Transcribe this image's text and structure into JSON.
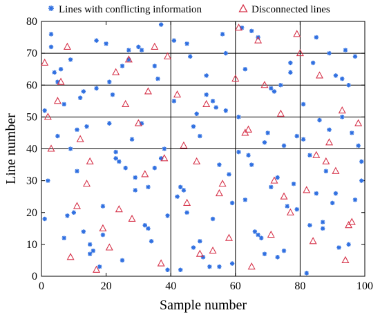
{
  "chart_data": {
    "type": "scatter",
    "title": "",
    "xlabel": "Sample number",
    "ylabel": "Line number",
    "xlim": [
      0,
      100
    ],
    "ylim": [
      0,
      80
    ],
    "xticks": [
      0,
      20,
      40,
      60,
      80,
      100
    ],
    "yticks": [
      0,
      10,
      20,
      30,
      40,
      50,
      60,
      70,
      80
    ],
    "grid": "partial black lines at x=40, 60, 80 and y=40, 50, 60, 70",
    "legend_position": "top",
    "series": [
      {
        "name": "Lines with conflicting information",
        "marker": "asterisk",
        "color": "#2f6fe0",
        "note": "dense scatter across entire plot area; representative points listed",
        "x": [
          1,
          3,
          5,
          7,
          9,
          11,
          13,
          15,
          17,
          19,
          21,
          23,
          25,
          27,
          29,
          31,
          33,
          35,
          37,
          39,
          41,
          43,
          45,
          47,
          49,
          51,
          53,
          55,
          57,
          59,
          61,
          63,
          65,
          67,
          69,
          71,
          73,
          75,
          77,
          79,
          81,
          83,
          85,
          87,
          89,
          91,
          93,
          95,
          97,
          99,
          2,
          6,
          10,
          14,
          18,
          22,
          26,
          30,
          34,
          38,
          42,
          46,
          50,
          54,
          58,
          62,
          66,
          70,
          74,
          78,
          82,
          86,
          90,
          94,
          98,
          4,
          8,
          12,
          16,
          20,
          24,
          28,
          32,
          36,
          44,
          48,
          52,
          56,
          64,
          68,
          72,
          76,
          84,
          88,
          92,
          96,
          1,
          9,
          17,
          25,
          33,
          41,
          49,
          57,
          65,
          73,
          81,
          89,
          97,
          5,
          13,
          21,
          29,
          37,
          45,
          53,
          61,
          69,
          77,
          85,
          93,
          3,
          11,
          19,
          27,
          35,
          43,
          51,
          59,
          67,
          75,
          83,
          91,
          99,
          7,
          15,
          23,
          31,
          39,
          47,
          55,
          63,
          71,
          79,
          87,
          95
        ],
        "y": [
          52,
          76,
          44,
          12,
          68,
          33,
          58,
          7,
          74,
          22,
          61,
          39,
          5,
          71,
          27,
          48,
          15,
          66,
          37,
          2,
          55,
          28,
          73,
          9,
          44,
          63,
          18,
          35,
          70,
          4,
          50,
          24,
          77,
          13,
          42,
          59,
          31,
          8,
          67,
          21,
          54,
          38,
          75,
          17,
          46,
          26,
          62,
          10,
          69,
          36,
          30,
          65,
          20,
          47,
          3,
          57,
          34,
          72,
          11,
          40,
          25,
          69,
          6,
          53,
          32,
          78,
          14,
          45,
          60,
          29,
          1,
          49,
          23,
          71,
          41,
          64,
          19,
          56,
          8,
          73,
          36,
          43,
          16,
          62,
          27,
          51,
          3,
          76,
          38,
          12,
          58,
          22,
          67,
          33,
          9,
          45,
          18,
          40,
          59,
          66,
          28,
          74,
          11,
          52,
          35,
          6,
          43,
          70,
          24,
          61,
          14,
          48,
          31,
          79,
          20,
          55,
          39,
          7,
          64,
          26,
          50,
          72,
          46,
          13,
          68,
          34,
          2,
          57,
          23,
          75,
          41,
          16,
          63,
          30,
          54,
          10,
          37,
          71,
          19,
          47,
          3,
          65,
          28,
          44,
          15,
          60
        ]
      },
      {
        "name": "Disconnected lines",
        "marker": "triangle",
        "color": "#d6334a",
        "x": [
          1,
          3,
          6,
          9,
          12,
          14,
          17,
          19,
          21,
          23,
          26,
          28,
          30,
          32,
          35,
          37,
          39,
          42,
          45,
          48,
          51,
          53,
          55,
          58,
          61,
          63,
          65,
          67,
          69,
          72,
          74,
          77,
          79,
          82,
          84,
          86,
          89,
          91,
          94,
          96,
          98,
          2,
          8,
          15,
          24,
          33,
          44,
          56,
          64,
          71,
          80,
          88,
          95,
          5,
          11,
          27,
          38,
          49,
          60,
          75,
          85,
          93
        ],
        "y": [
          67,
          40,
          61,
          6,
          43,
          29,
          2,
          15,
          9,
          64,
          54,
          18,
          48,
          32,
          72,
          4,
          69,
          57,
          23,
          36,
          54,
          8,
          26,
          12,
          78,
          45,
          3,
          74,
          60,
          30,
          51,
          20,
          76,
          27,
          11,
          63,
          42,
          33,
          5,
          17,
          48,
          50,
          72,
          36,
          21,
          58,
          41,
          29,
          46,
          13,
          70,
          36,
          16,
          55,
          22,
          68,
          37,
          7,
          62,
          25,
          38,
          52
        ]
      }
    ]
  }
}
